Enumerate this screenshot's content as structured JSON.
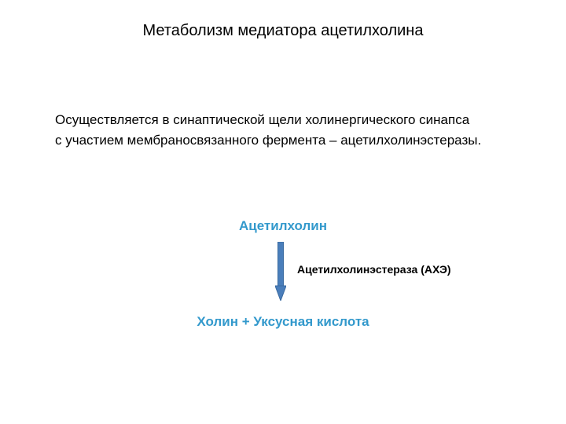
{
  "title": {
    "text": "Метаболизм медиатора ацетилхолина",
    "fontsize": 20,
    "color": "#000000"
  },
  "body": {
    "line1": "Осуществляется в синаптической щели холинергического синапса",
    "line2": "с участием мембраносвязанного фермента – ацетилхолинэстеразы.",
    "fontsize": 17,
    "color": "#000000"
  },
  "reaction": {
    "substrate": {
      "text": "Ацетилхолин",
      "fontsize": 17,
      "color": "#3399cc"
    },
    "enzyme": {
      "text": "Ацетилхолинэстераза (АХЭ)",
      "fontsize": 14,
      "color": "#000000"
    },
    "products": {
      "text": "Холин + Уксусная кислота",
      "fontsize": 17,
      "color": "#3399cc"
    },
    "arrow": {
      "shaft_color": "#4a7ebb",
      "head_color": "#4a7ebb",
      "shaft_width": 7,
      "outline_color": "#3a6aa0"
    }
  },
  "background_color": "#ffffff"
}
